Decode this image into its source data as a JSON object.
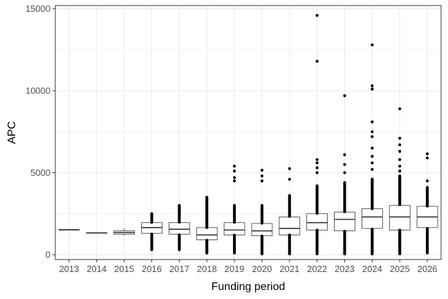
{
  "chart_data": {
    "type": "boxplot",
    "xlabel": "Funding period",
    "ylabel": "APC",
    "ylim": [
      -300,
      15200
    ],
    "yticks": [
      0,
      5000,
      10000,
      15000
    ],
    "yticklabels": [
      "0",
      "5000",
      "10000",
      "15000"
    ],
    "grid": true,
    "theme": "bw",
    "colors": {
      "grid": "#ebebeb",
      "border": "#333333",
      "box": "#333333",
      "point": "#000000"
    },
    "categories": [
      "2013",
      "2014",
      "2015",
      "2016",
      "2017",
      "2018",
      "2019",
      "2020",
      "2021",
      "2022",
      "2023",
      "2024",
      "2025",
      "2026"
    ],
    "boxes": [
      {
        "q1": 1520,
        "median": 1520,
        "q3": 1520,
        "whisker_low": 1520,
        "whisker_high": 1520
      },
      {
        "q1": 1330,
        "median": 1330,
        "q3": 1330,
        "whisker_low": 1330,
        "whisker_high": 1330
      },
      {
        "q1": 1250,
        "median": 1350,
        "q3": 1450,
        "whisker_low": 1150,
        "whisker_high": 1600
      },
      {
        "q1": 1300,
        "median": 1650,
        "q3": 1950,
        "whisker_low": 300,
        "whisker_high": 2500
      },
      {
        "q1": 1250,
        "median": 1550,
        "q3": 1950,
        "whisker_low": 300,
        "whisker_high": 3000
      },
      {
        "q1": 900,
        "median": 1200,
        "q3": 1650,
        "whisker_low": 100,
        "whisker_high": 3500
      },
      {
        "q1": 1200,
        "median": 1500,
        "q3": 1950,
        "whisker_low": 100,
        "whisker_high": 3000
      },
      {
        "q1": 1150,
        "median": 1450,
        "q3": 1900,
        "whisker_low": 50,
        "whisker_high": 3000
      },
      {
        "q1": 1200,
        "median": 1600,
        "q3": 2300,
        "whisker_low": 50,
        "whisker_high": 3600
      },
      {
        "q1": 1500,
        "median": 1950,
        "q3": 2500,
        "whisker_low": 50,
        "whisker_high": 4200
      },
      {
        "q1": 1450,
        "median": 2150,
        "q3": 2600,
        "whisker_low": 50,
        "whisker_high": 4400
      },
      {
        "q1": 1600,
        "median": 2300,
        "q3": 2800,
        "whisker_low": 50,
        "whisker_high": 4600
      },
      {
        "q1": 1500,
        "median": 2300,
        "q3": 3000,
        "whisker_low": 50,
        "whisker_high": 4800
      },
      {
        "q1": 1650,
        "median": 2300,
        "q3": 2950,
        "whisker_low": 100,
        "whisker_high": 4100
      }
    ],
    "outliers": [
      [],
      [],
      [],
      [],
      [],
      [],
      [
        4500,
        4700,
        5100,
        5400
      ],
      [
        4500,
        4800,
        5150
      ],
      [
        4600,
        5250
      ],
      [
        5000,
        5300,
        5600,
        5800,
        11800,
        14600
      ],
      [
        5000,
        5500,
        6100,
        9700
      ],
      [
        5200,
        5600,
        6000,
        6500,
        7200,
        7500,
        8100,
        10100,
        10300,
        12800
      ],
      [
        5100,
        5400,
        5800,
        6300,
        6700,
        7100,
        8900
      ],
      [
        4500,
        5900,
        6150
      ]
    ]
  }
}
